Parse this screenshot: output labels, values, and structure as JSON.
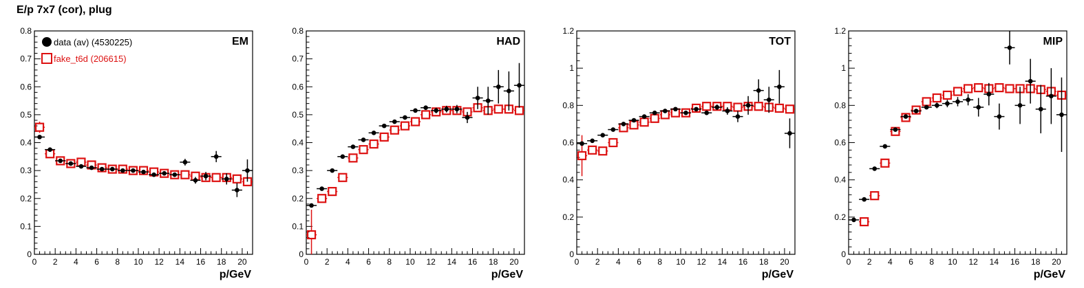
{
  "title": "E/p 7x7 (cor), plug",
  "colors": {
    "data": "#000000",
    "fake": "#dd1111",
    "axis": "#000000"
  },
  "legend": {
    "data_label": "data (av) (4530225)",
    "fake_label": "fake_t6d (206615)"
  },
  "chart_data": [
    {
      "type": "scatter",
      "panel_label": "EM",
      "xlabel": "p/GeV",
      "ylabel": "",
      "xlim": [
        0,
        21
      ],
      "ylim": [
        0,
        0.8
      ],
      "xticks": [
        "0",
        "2",
        "4",
        "6",
        "8",
        "10",
        "12",
        "14",
        "16",
        "18",
        "20"
      ],
      "yticks": [
        "0",
        "0.1",
        "0.2",
        "0.3",
        "0.4",
        "0.5",
        "0.6",
        "0.7",
        "0.8"
      ],
      "series": [
        {
          "name": "data (av) (4530225)",
          "marker": "filled-circle",
          "x": [
            0.5,
            1.5,
            2.5,
            3.5,
            4.5,
            5.5,
            6.5,
            7.5,
            8.5,
            9.5,
            10.5,
            11.5,
            12.5,
            13.5,
            14.5,
            15.5,
            16.5,
            17.5,
            18.5,
            19.5,
            20.5
          ],
          "y": [
            0.42,
            0.375,
            0.335,
            0.325,
            0.315,
            0.31,
            0.305,
            0.305,
            0.3,
            0.3,
            0.295,
            0.285,
            0.29,
            0.285,
            0.33,
            0.265,
            0.28,
            0.35,
            0.27,
            0.23,
            0.3
          ],
          "err": [
            0.005,
            0.004,
            0.004,
            0.004,
            0.004,
            0.004,
            0.004,
            0.004,
            0.004,
            0.004,
            0.005,
            0.005,
            0.006,
            0.007,
            0.012,
            0.012,
            0.015,
            0.02,
            0.02,
            0.025,
            0.04
          ]
        },
        {
          "name": "fake_t6d (206615)",
          "marker": "open-square",
          "x": [
            0.5,
            1.5,
            2.5,
            3.5,
            4.5,
            5.5,
            6.5,
            7.5,
            8.5,
            9.5,
            10.5,
            11.5,
            12.5,
            13.5,
            14.5,
            15.5,
            16.5,
            17.5,
            18.5,
            19.5,
            20.5
          ],
          "y": [
            0.455,
            0.36,
            0.335,
            0.325,
            0.33,
            0.32,
            0.31,
            0.305,
            0.305,
            0.3,
            0.3,
            0.295,
            0.29,
            0.285,
            0.285,
            0.28,
            0.275,
            0.275,
            0.275,
            0.27,
            0.26
          ],
          "err": [
            0.02,
            0.01,
            0.008,
            0.006,
            0.006,
            0.005,
            0.005,
            0.005,
            0.005,
            0.005,
            0.005,
            0.005,
            0.005,
            0.005,
            0.005,
            0.006,
            0.006,
            0.007,
            0.007,
            0.008,
            0.01
          ]
        }
      ]
    },
    {
      "type": "scatter",
      "panel_label": "HAD",
      "xlabel": "p/GeV",
      "ylabel": "",
      "xlim": [
        0,
        21
      ],
      "ylim": [
        0,
        0.8
      ],
      "xticks": [
        "0",
        "2",
        "4",
        "6",
        "8",
        "10",
        "12",
        "14",
        "16",
        "18",
        "20"
      ],
      "yticks": [
        "0",
        "0.1",
        "0.2",
        "0.3",
        "0.4",
        "0.5",
        "0.6",
        "0.7",
        "0.8"
      ],
      "series": [
        {
          "name": "data (av) (4530225)",
          "marker": "filled-circle",
          "x": [
            0.5,
            1.5,
            2.5,
            3.5,
            4.5,
            5.5,
            6.5,
            7.5,
            8.5,
            9.5,
            10.5,
            11.5,
            12.5,
            13.5,
            14.5,
            15.5,
            16.5,
            17.5,
            18.5,
            19.5,
            20.5
          ],
          "y": [
            0.175,
            0.235,
            0.3,
            0.35,
            0.385,
            0.41,
            0.435,
            0.46,
            0.475,
            0.49,
            0.515,
            0.525,
            0.515,
            0.52,
            0.52,
            0.49,
            0.56,
            0.55,
            0.6,
            0.585,
            0.605
          ],
          "err": [
            0.005,
            0.004,
            0.004,
            0.004,
            0.004,
            0.004,
            0.004,
            0.004,
            0.005,
            0.005,
            0.006,
            0.008,
            0.01,
            0.012,
            0.015,
            0.02,
            0.04,
            0.05,
            0.06,
            0.07,
            0.08
          ]
        },
        {
          "name": "fake_t6d (206615)",
          "marker": "open-square",
          "x": [
            0.5,
            1.5,
            2.5,
            3.5,
            4.5,
            5.5,
            6.5,
            7.5,
            8.5,
            9.5,
            10.5,
            11.5,
            12.5,
            13.5,
            14.5,
            15.5,
            16.5,
            17.5,
            18.5,
            19.5,
            20.5
          ],
          "y": [
            0.07,
            0.2,
            0.225,
            0.275,
            0.345,
            0.375,
            0.395,
            0.42,
            0.445,
            0.46,
            0.475,
            0.5,
            0.51,
            0.515,
            0.515,
            0.51,
            0.525,
            0.515,
            0.52,
            0.52,
            0.515
          ],
          "err": [
            0.09,
            0.01,
            0.008,
            0.006,
            0.006,
            0.005,
            0.005,
            0.005,
            0.005,
            0.005,
            0.005,
            0.005,
            0.005,
            0.005,
            0.005,
            0.006,
            0.006,
            0.007,
            0.007,
            0.008,
            0.01
          ]
        }
      ]
    },
    {
      "type": "scatter",
      "panel_label": "TOT",
      "xlabel": "p/GeV",
      "ylabel": "",
      "xlim": [
        0,
        21
      ],
      "ylim": [
        0,
        1.2
      ],
      "xticks": [
        "0",
        "2",
        "4",
        "6",
        "8",
        "10",
        "12",
        "14",
        "16",
        "18",
        "20"
      ],
      "yticks": [
        "0",
        "0.2",
        "0.4",
        "0.6",
        "0.8",
        "1",
        "1.2"
      ],
      "series": [
        {
          "name": "data (av) (4530225)",
          "marker": "filled-circle",
          "x": [
            0.5,
            1.5,
            2.5,
            3.5,
            4.5,
            5.5,
            6.5,
            7.5,
            8.5,
            9.5,
            10.5,
            11.5,
            12.5,
            13.5,
            14.5,
            15.5,
            16.5,
            17.5,
            18.5,
            19.5,
            20.5
          ],
          "y": [
            0.595,
            0.61,
            0.64,
            0.67,
            0.7,
            0.72,
            0.74,
            0.76,
            0.77,
            0.78,
            0.76,
            0.78,
            0.76,
            0.79,
            0.77,
            0.74,
            0.8,
            0.88,
            0.83,
            0.9,
            0.65
          ],
          "err": [
            0.006,
            0.005,
            0.005,
            0.005,
            0.005,
            0.005,
            0.005,
            0.005,
            0.006,
            0.006,
            0.008,
            0.01,
            0.012,
            0.015,
            0.02,
            0.03,
            0.05,
            0.06,
            0.07,
            0.09,
            0.08
          ]
        },
        {
          "name": "fake_t6d (206615)",
          "marker": "open-square",
          "x": [
            0.5,
            1.5,
            2.5,
            3.5,
            4.5,
            5.5,
            6.5,
            7.5,
            8.5,
            9.5,
            10.5,
            11.5,
            12.5,
            13.5,
            14.5,
            15.5,
            16.5,
            17.5,
            18.5,
            19.5,
            20.5
          ],
          "y": [
            0.53,
            0.56,
            0.555,
            0.6,
            0.68,
            0.695,
            0.71,
            0.73,
            0.75,
            0.76,
            0.76,
            0.785,
            0.795,
            0.795,
            0.795,
            0.79,
            0.795,
            0.795,
            0.79,
            0.785,
            0.78
          ],
          "err": [
            0.11,
            0.012,
            0.01,
            0.008,
            0.007,
            0.006,
            0.006,
            0.006,
            0.006,
            0.006,
            0.006,
            0.006,
            0.006,
            0.006,
            0.006,
            0.007,
            0.007,
            0.008,
            0.008,
            0.009,
            0.01
          ]
        }
      ]
    },
    {
      "type": "scatter",
      "panel_label": "MIP",
      "xlabel": "p/GeV",
      "ylabel": "",
      "xlim": [
        0,
        21
      ],
      "ylim": [
        0,
        1.2
      ],
      "xticks": [
        "0",
        "2",
        "4",
        "6",
        "8",
        "10",
        "12",
        "14",
        "16",
        "18",
        "20"
      ],
      "yticks": [
        "0",
        "0.2",
        "0.4",
        "0.6",
        "0.8",
        "1",
        "1.2"
      ],
      "series": [
        {
          "name": "data (av) (4530225)",
          "marker": "filled-circle",
          "x": [
            0.5,
            1.5,
            2.5,
            3.5,
            4.5,
            5.5,
            6.5,
            7.5,
            8.5,
            9.5,
            10.5,
            11.5,
            12.5,
            13.5,
            14.5,
            15.5,
            16.5,
            17.5,
            18.5,
            19.5,
            20.5
          ],
          "y": [
            0.185,
            0.295,
            0.46,
            0.58,
            0.67,
            0.74,
            0.77,
            0.79,
            0.8,
            0.81,
            0.82,
            0.83,
            0.79,
            0.86,
            0.74,
            1.11,
            0.8,
            0.93,
            0.78,
            0.85,
            0.75
          ],
          "err": [
            0.005,
            0.005,
            0.005,
            0.005,
            0.006,
            0.007,
            0.008,
            0.01,
            0.015,
            0.02,
            0.025,
            0.03,
            0.05,
            0.06,
            0.07,
            0.09,
            0.1,
            0.12,
            0.13,
            0.15,
            0.2
          ]
        },
        {
          "name": "fake_t6d (206615)",
          "marker": "open-square",
          "x": [
            1.5,
            2.5,
            3.5,
            4.5,
            5.5,
            6.5,
            7.5,
            8.5,
            9.5,
            10.5,
            11.5,
            12.5,
            13.5,
            14.5,
            15.5,
            16.5,
            17.5,
            18.5,
            19.5,
            20.5
          ],
          "y": [
            0.175,
            0.315,
            0.49,
            0.66,
            0.735,
            0.775,
            0.82,
            0.84,
            0.855,
            0.875,
            0.89,
            0.895,
            0.89,
            0.895,
            0.89,
            0.89,
            0.89,
            0.885,
            0.875,
            0.855
          ],
          "err": [
            0.01,
            0.01,
            0.008,
            0.007,
            0.006,
            0.006,
            0.006,
            0.006,
            0.006,
            0.006,
            0.006,
            0.006,
            0.006,
            0.006,
            0.007,
            0.007,
            0.008,
            0.008,
            0.009,
            0.01
          ]
        }
      ]
    }
  ]
}
